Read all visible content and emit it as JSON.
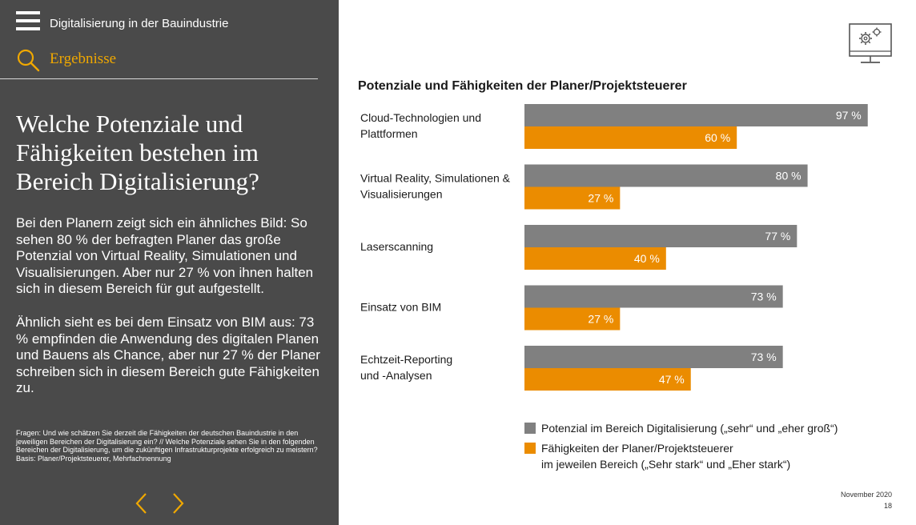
{
  "header": {
    "app_title": "Digitalisierung in der Bauindustrie",
    "section_title": "Ergebnisse"
  },
  "sidebar": {
    "question": "Welche Potenziale und Fähigkeiten bestehen im Bereich Digitalisierung?",
    "paragraph1": "Bei den Planern zeigt sich ein ähnliches Bild: So sehen 80 % der befragten Planer das große Potenzial von Virtual Reality, Simulationen und Visualisierungen. Aber nur 27 % von ihnen halten sich in diesem Bereich für gut aufgestellt.",
    "paragraph2": "Ähnlich sieht es bei dem Einsatz von BIM aus: 73 % empfinden die Anwendung des digitalen Planen und Bauens als Chance, aber nur 27 % der Planer schreiben sich in diesem Bereich gute Fähigkeiten zu.",
    "footnote_question": "Fragen: Und wie schätzen Sie derzeit die Fähigkeiten der deutschen Bauindustrie in den jeweiligen Bereichen der Digitalisierung ein? // Welche Potenziale sehen Sie in den folgenden Bereichen der Digitalisierung, um die zukünftigen Infrastrukturprojekte erfolgreich zu meistern?",
    "footnote_basis": "Basis: Planer/Projektsteuerer, Mehrfachnennung"
  },
  "icons": {
    "menu": "hamburger-menu-icon",
    "search": "search-icon",
    "prev": "chevron-left-icon",
    "next": "chevron-right-icon",
    "monitor": "monitor-gears-icon"
  },
  "colors": {
    "sidebar_bg": "#4a4a4a",
    "accent": "#f0a800",
    "potential": "#808080",
    "capability": "#eb8c00"
  },
  "chart_data": {
    "type": "bar",
    "orientation": "horizontal",
    "title": "Potenziale und Fähigkeiten der Planer/Projektsteuerer",
    "categories": [
      "Cloud-Technologien und\nPlattformen",
      "Virtual Reality, Simulationen &\nVisualisierungen",
      "Laserscanning",
      "Einsatz von BIM",
      "Echtzeit-Reporting\nund -Analysen"
    ],
    "series": [
      {
        "name": "Potenzial im Bereich Digitalisierung („sehr“ und „eher groß“)",
        "color": "#808080",
        "values": [
          97,
          80,
          77,
          73,
          73
        ]
      },
      {
        "name": "Fähigkeiten der Planer/Projektsteuerer\nim jeweilen Bereich („Sehr stark“ und „Eher stark“)",
        "color": "#eb8c00",
        "values": [
          60,
          27,
          40,
          27,
          47
        ]
      }
    ],
    "value_suffix": " %",
    "xlim": [
      0,
      100
    ],
    "grid": false,
    "legend_position": "bottom"
  },
  "footer": {
    "date": "November 2020",
    "page": "18"
  }
}
